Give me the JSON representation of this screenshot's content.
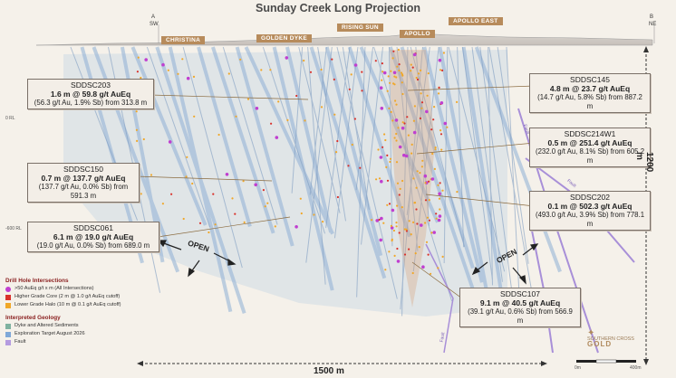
{
  "title": "Sunday Creek Long Projection",
  "sections": {
    "a_letter": "A",
    "a_dir": "SW",
    "b_letter": "B",
    "b_dir": "NE"
  },
  "zone_labels": [
    "CHRISTINA",
    "GOLDEN DYKE",
    "RISING SUN",
    "APOLLO",
    "APOLLO EAST"
  ],
  "callouts": [
    {
      "id": "SDDSC203",
      "main": "1.6 m @ 59.8 g/t AuEq",
      "sub": "(56.3 g/t Au, 1.9% Sb) from 313.8 m"
    },
    {
      "id": "SDDSC145",
      "main": "4.8 m @ 23.7 g/t AuEq",
      "sub": "(14.7 g/t Au, 5.8% Sb) from 887.2 m"
    },
    {
      "id": "SDDSC214W1",
      "main": "0.5 m @ 251.4 g/t AuEq",
      "sub": "(232.0 g/t Au, 8.1% Sb) from 605.2 m"
    },
    {
      "id": "SDDSC150",
      "main": "0.7 m @ 137.7 g/t AuEq",
      "sub": "(137.7 g/t Au, 0.0% Sb) from 591.3 m"
    },
    {
      "id": "SDDSC202",
      "main": "0.1 m @ 502.3 g/t AuEq",
      "sub": "(493.0 g/t Au, 3.9% Sb) from 778.1 m"
    },
    {
      "id": "SDDSC061",
      "main": "6.1 m @ 19.0 g/t AuEq",
      "sub": "(19.0 g/t Au, 0.0% Sb) from 689.0 m"
    },
    {
      "id": "SDDSC107",
      "main": "9.1 m @ 40.5 g/t AuEq",
      "sub": "(39.1 g/t Au, 0.6% Sb) from 566.9 m"
    }
  ],
  "open_labels": [
    "OPEN",
    "OPEN"
  ],
  "vertical_scale": "1200 m",
  "horizontal_scale": "1500 m",
  "rl_labels": [
    "0 RL",
    "-600 RL"
  ],
  "fault_labels": [
    "Fault",
    "Fault",
    "Fault"
  ],
  "legend": {
    "drill_heading": "Drill Hole Intersections",
    "drill_items": [
      {
        "label": ">50 AuEq g/t x m (All Intersections)",
        "color": "#c03fd0"
      },
      {
        "label": "Higher Grade Core (2 m @ 1.0 g/t AuEq cutoff)",
        "color": "#d9312b"
      },
      {
        "label": "Lower Grade Halo (10 m @ 0.1 g/t AuEq cutoff)",
        "color": "#f0a728"
      }
    ],
    "geology_heading": "Interpreted Geology",
    "geology_items": [
      {
        "label": "Dyke and Altered Sediments",
        "color": "#7fb2a0"
      },
      {
        "label": "Exploration Target August 2026",
        "color": "#7fa8d8"
      },
      {
        "label": "Fault",
        "color": "#b49be0"
      }
    ]
  },
  "bar_scale": [
    "0m",
    "400m"
  ],
  "logo": {
    "line1": "SOUTHERN CROSS",
    "line2": "GOLD"
  }
}
